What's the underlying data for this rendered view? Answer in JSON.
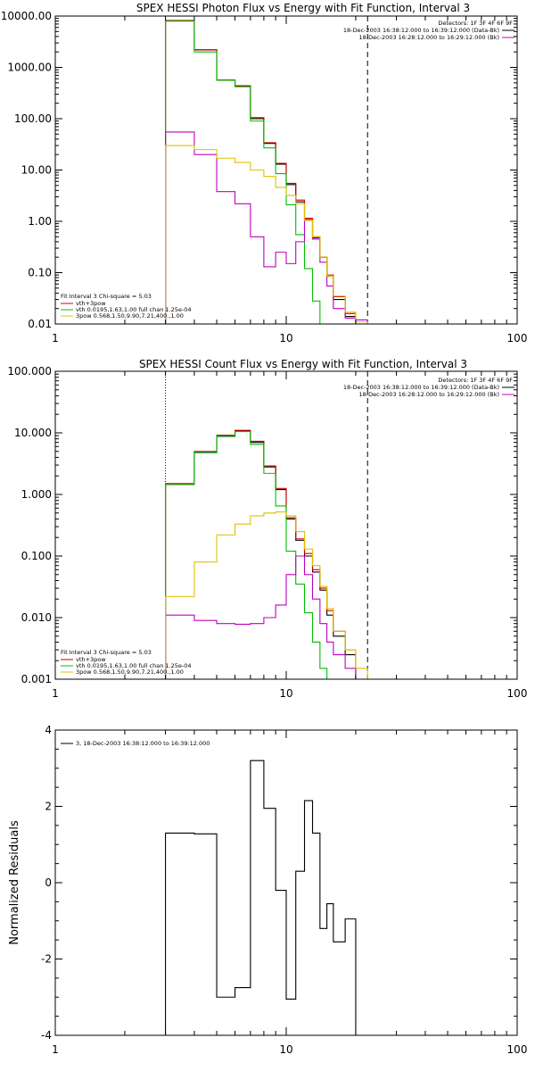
{
  "chart_data": [
    {
      "type": "line",
      "title": "SPEX HESSI Photon Flux vs Energy with Fit Function, Interval 3",
      "xscale": "log",
      "yscale": "log",
      "xlim": [
        1,
        100
      ],
      "ylim": [
        0.01,
        10000
      ],
      "xticks": [
        "1",
        "10",
        "100"
      ],
      "yticks": [
        "0.01",
        "0.10",
        "1.00",
        "10.00",
        "100.00",
        "1000.00",
        "10000.00"
      ],
      "detectors_label": "Detectors: 1F 3F 4F 6F 9F",
      "time_lines": [
        {
          "text": "18-Dec-2003 16:38:12.000 to 16:39:12.000 (Data-Bk)",
          "color": "#000000"
        },
        {
          "text": "18-Dec-2003 16:28:12.000 to 16:29:12.000 (Bk)",
          "color": "#c000c0"
        }
      ],
      "fit_legend": {
        "header": "Fit Interval 3   Chi-square = 5.03",
        "items": [
          {
            "text": "vth+3pow",
            "color": "#cc0000"
          },
          {
            "text": "vth 0.0195,1.63,1.00  full chan 1.25e-04",
            "color": "#00c000"
          },
          {
            "text": "3pow 0.568,1.50,9.90,7.21,400.,1.00",
            "color": "#e0c000"
          }
        ]
      },
      "vlines": [
        {
          "x": 3.0,
          "style": "dotted"
        },
        {
          "x": 22.5,
          "style": "dashed"
        }
      ],
      "edges": [
        3.0,
        4.0,
        5.0,
        6.0,
        7.0,
        8.0,
        9.0,
        10.0,
        11.0,
        12.0,
        13.0,
        14.0,
        15.0,
        16.0,
        18.0,
        20.0,
        22.5,
        25.0
      ],
      "series": [
        {
          "color": "#000000",
          "values": [
            8000,
            2200,
            560,
            430,
            100,
            33,
            13,
            5.2,
            2.4,
            1.05,
            0.48,
            0.2,
            0.085,
            0.03,
            0.014
          ]
        },
        {
          "color": "#cc0000",
          "values": [
            8200,
            2200,
            570,
            440,
            105,
            34,
            13.5,
            5.5,
            2.6,
            1.15,
            0.5,
            0.2,
            0.09,
            0.034,
            0.016,
            0.01
          ]
        },
        {
          "color": "#00c000",
          "values": [
            8000,
            2000,
            560,
            420,
            90,
            27,
            8.5,
            2.1,
            0.55,
            0.12,
            0.028,
            0.008
          ]
        },
        {
          "color": "#c000c0",
          "values": [
            55,
            20,
            3.8,
            2.2,
            0.5,
            0.13,
            0.25,
            0.15,
            0.4,
            1.1,
            0.45,
            0.16,
            0.055,
            0.02,
            0.013,
            0.012
          ]
        },
        {
          "color": "#e0c000",
          "values": [
            30,
            25,
            17,
            14,
            10,
            7.5,
            4.6,
            3.2,
            2.2,
            1.05,
            0.5,
            0.2,
            0.085,
            0.035,
            0.017,
            0.011,
            0.008
          ]
        }
      ]
    },
    {
      "type": "line",
      "title": "SPEX HESSI Count Flux vs Energy with Fit Function, Interval 3",
      "xscale": "log",
      "yscale": "log",
      "xlim": [
        1,
        100
      ],
      "ylim": [
        0.001,
        100
      ],
      "xticks": [
        "1",
        "10",
        "100"
      ],
      "yticks": [
        "0.001",
        "0.010",
        "0.100",
        "1.000",
        "10.000",
        "100.000"
      ],
      "detectors_label": "Detectors: 1F 3F 4F 6F 9F",
      "time_lines": [
        {
          "text": "18-Dec-2003 16:38:12.000 to 16:39:12.000 (Data-Bk)",
          "color": "#000000"
        },
        {
          "text": "18-Dec-2003 16:28:12.000 to 16:29:12.000 (Bk)",
          "color": "#c000c0"
        }
      ],
      "fit_legend": {
        "header": "Fit Interval 3   Chi-square = 5.03",
        "items": [
          {
            "text": "vth+3pow",
            "color": "#cc0000"
          },
          {
            "text": "vth 0.0195,1.63,1.00  full chan 1.25e-04",
            "color": "#00c000"
          },
          {
            "text": "3pow 0.568,1.50,9.90,7.21,400.,1.00",
            "color": "#e0c000"
          }
        ]
      },
      "vlines": [
        {
          "x": 3.0,
          "style": "dotted"
        },
        {
          "x": 22.5,
          "style": "dashed"
        }
      ],
      "edges": [
        3.0,
        4.0,
        5.0,
        6.0,
        7.0,
        8.0,
        9.0,
        10.0,
        11.0,
        12.0,
        13.0,
        14.0,
        15.0,
        16.0,
        18.0,
        20.0,
        22.5,
        25.0
      ],
      "series": [
        {
          "color": "#000000",
          "values": [
            1.45,
            4.8,
            8.8,
            10.8,
            7.0,
            2.8,
            1.2,
            0.4,
            0.18,
            0.1,
            0.055,
            0.028,
            0.011,
            0.005,
            0.0025
          ]
        },
        {
          "color": "#cc0000",
          "values": [
            1.5,
            5.0,
            9.2,
            11.0,
            7.3,
            2.9,
            1.25,
            0.42,
            0.19,
            0.11,
            0.06,
            0.03,
            0.013,
            0.006,
            0.003,
            0.001
          ]
        },
        {
          "color": "#00c000",
          "values": [
            1.45,
            4.9,
            9.0,
            10.5,
            6.5,
            2.2,
            0.65,
            0.12,
            0.035,
            0.012,
            0.004,
            0.0015
          ]
        },
        {
          "color": "#c000c0",
          "values": [
            0.011,
            0.009,
            0.008,
            0.0078,
            0.008,
            0.01,
            0.016,
            0.05,
            0.1,
            0.05,
            0.02,
            0.008,
            0.004,
            0.0025,
            0.0015,
            0.001
          ]
        },
        {
          "color": "#e0c000",
          "values": [
            0.022,
            0.08,
            0.22,
            0.33,
            0.45,
            0.5,
            0.52,
            0.45,
            0.25,
            0.13,
            0.07,
            0.032,
            0.014,
            0.006,
            0.003,
            0.0015,
            0.001
          ]
        }
      ]
    },
    {
      "type": "line",
      "title": "",
      "xscale": "log",
      "yscale": "linear",
      "xlim": [
        1,
        100
      ],
      "ylim": [
        -4,
        4
      ],
      "xticks": [
        "1",
        "10",
        "100"
      ],
      "yticks": [
        "-4",
        "-2",
        "0",
        "2",
        "4"
      ],
      "ylabel": "Normalized Residuals",
      "legend": {
        "text": "3, 18-Dec-2003 16:38:12.000 to 16:39:12.000",
        "color": "#000000"
      },
      "edges": [
        3.0,
        4.0,
        5.0,
        6.0,
        7.0,
        8.0,
        9.0,
        10.0,
        11.0,
        12.0,
        13.0,
        14.0,
        15.0,
        16.0,
        18.0,
        20.0,
        22.5
      ],
      "series": [
        {
          "color": "#000000",
          "values": [
            1.3,
            1.28,
            -3.0,
            -2.75,
            3.2,
            1.95,
            -0.2,
            -3.05,
            0.3,
            2.15,
            1.3,
            -1.2,
            -0.55,
            -1.55,
            -0.95,
            -4.0
          ]
        }
      ]
    }
  ]
}
